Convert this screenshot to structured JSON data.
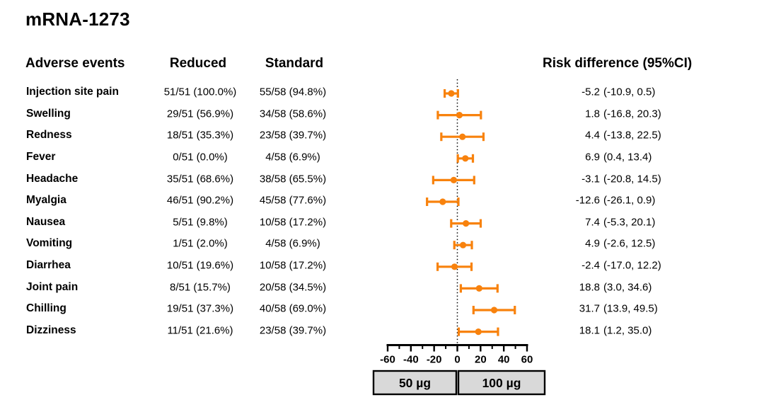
{
  "title": "mRNA-1273",
  "table": {
    "headers": {
      "adverse_events": "Adverse events",
      "reduced": "Reduced",
      "standard": "Standard",
      "risk_difference": "Risk difference (95%CI)"
    },
    "rows": [
      {
        "label": "Injection site pain",
        "reduced": "51/51 (100.0%)",
        "standard": "55/58 (94.8%)",
        "rd_value": "-5.2",
        "rd_ci": "(-10.9, 0.5)"
      },
      {
        "label": "Swelling",
        "reduced": "29/51 (56.9%)",
        "standard": "34/58 (58.6%)",
        "rd_value": "1.8",
        "rd_ci": "(-16.8, 20.3)"
      },
      {
        "label": "Redness",
        "reduced": "18/51 (35.3%)",
        "standard": "23/58 (39.7%)",
        "rd_value": "4.4",
        "rd_ci": "(-13.8, 22.5)"
      },
      {
        "label": "Fever",
        "reduced": "0/51 (0.0%)",
        "standard": "4/58 (6.9%)",
        "rd_value": "6.9",
        "rd_ci": "(0.4, 13.4)"
      },
      {
        "label": "Headache",
        "reduced": "35/51 (68.6%)",
        "standard": "38/58 (65.5%)",
        "rd_value": "-3.1",
        "rd_ci": "(-20.8, 14.5)"
      },
      {
        "label": "Myalgia",
        "reduced": "46/51 (90.2%)",
        "standard": "45/58 (77.6%)",
        "rd_value": "-12.6",
        "rd_ci": "(-26.1, 0.9)"
      },
      {
        "label": "Nausea",
        "reduced": "5/51 (9.8%)",
        "standard": "10/58 (17.2%)",
        "rd_value": "7.4",
        "rd_ci": "(-5.3, 20.1)"
      },
      {
        "label": "Vomiting",
        "reduced": "1/51 (2.0%)",
        "standard": "4/58 (6.9%)",
        "rd_value": "4.9",
        "rd_ci": "(-2.6, 12.5)"
      },
      {
        "label": "Diarrhea",
        "reduced": "10/51 (19.6%)",
        "standard": "10/58 (17.2%)",
        "rd_value": "-2.4",
        "rd_ci": "(-17.0, 12.2)"
      },
      {
        "label": "Joint pain",
        "reduced": "8/51 (15.7%)",
        "standard": "20/58 (34.5%)",
        "rd_value": "18.8",
        "rd_ci": "(3.0, 34.6)"
      },
      {
        "label": "Chilling",
        "reduced": "19/51 (37.3%)",
        "standard": "40/58 (69.0%)",
        "rd_value": "31.7",
        "rd_ci": "(13.9, 49.5)"
      },
      {
        "label": "Dizziness",
        "reduced": "11/51 (21.6%)",
        "standard": "23/58 (39.7%)",
        "rd_value": "18.1",
        "rd_ci": "(1.2, 35.0)"
      }
    ]
  },
  "chart_data": {
    "type": "forest",
    "title": "mRNA-1273",
    "xlabel": "",
    "ylabel": "",
    "xlim": [
      -60,
      60
    ],
    "x_ticks_major": [
      -60,
      -40,
      -20,
      0,
      20,
      40,
      60
    ],
    "x_ticks_minor": [
      -50,
      -30,
      -10,
      10,
      30,
      50
    ],
    "reference_line": 0,
    "grid": false,
    "categories": [
      "Injection site pain",
      "Swelling",
      "Redness",
      "Fever",
      "Headache",
      "Myalgia",
      "Nausea",
      "Vomiting",
      "Diarrhea",
      "Joint pain",
      "Chilling",
      "Dizziness"
    ],
    "series": [
      {
        "name": "Risk difference (95%CI)",
        "estimates": [
          -5.2,
          1.8,
          4.4,
          6.9,
          -3.1,
          -12.6,
          7.4,
          4.9,
          -2.4,
          18.8,
          31.7,
          18.1
        ],
        "ci_low": [
          -10.9,
          -16.8,
          -13.8,
          0.4,
          -20.8,
          -26.1,
          -5.3,
          -2.6,
          -17.0,
          3.0,
          13.9,
          1.2
        ],
        "ci_high": [
          0.5,
          20.3,
          22.5,
          13.4,
          14.5,
          0.9,
          20.1,
          12.5,
          12.2,
          34.6,
          49.5,
          35.0
        ]
      }
    ],
    "legend": [
      {
        "label": "50 µg"
      },
      {
        "label": "100 µg"
      }
    ],
    "legend_position": "bottom",
    "marker_color": "#F8820D"
  },
  "colors": {
    "marker": "#F8820D",
    "legend_fill": "#D9D9D9",
    "text": "#000000",
    "background": "#FFFFFF"
  }
}
